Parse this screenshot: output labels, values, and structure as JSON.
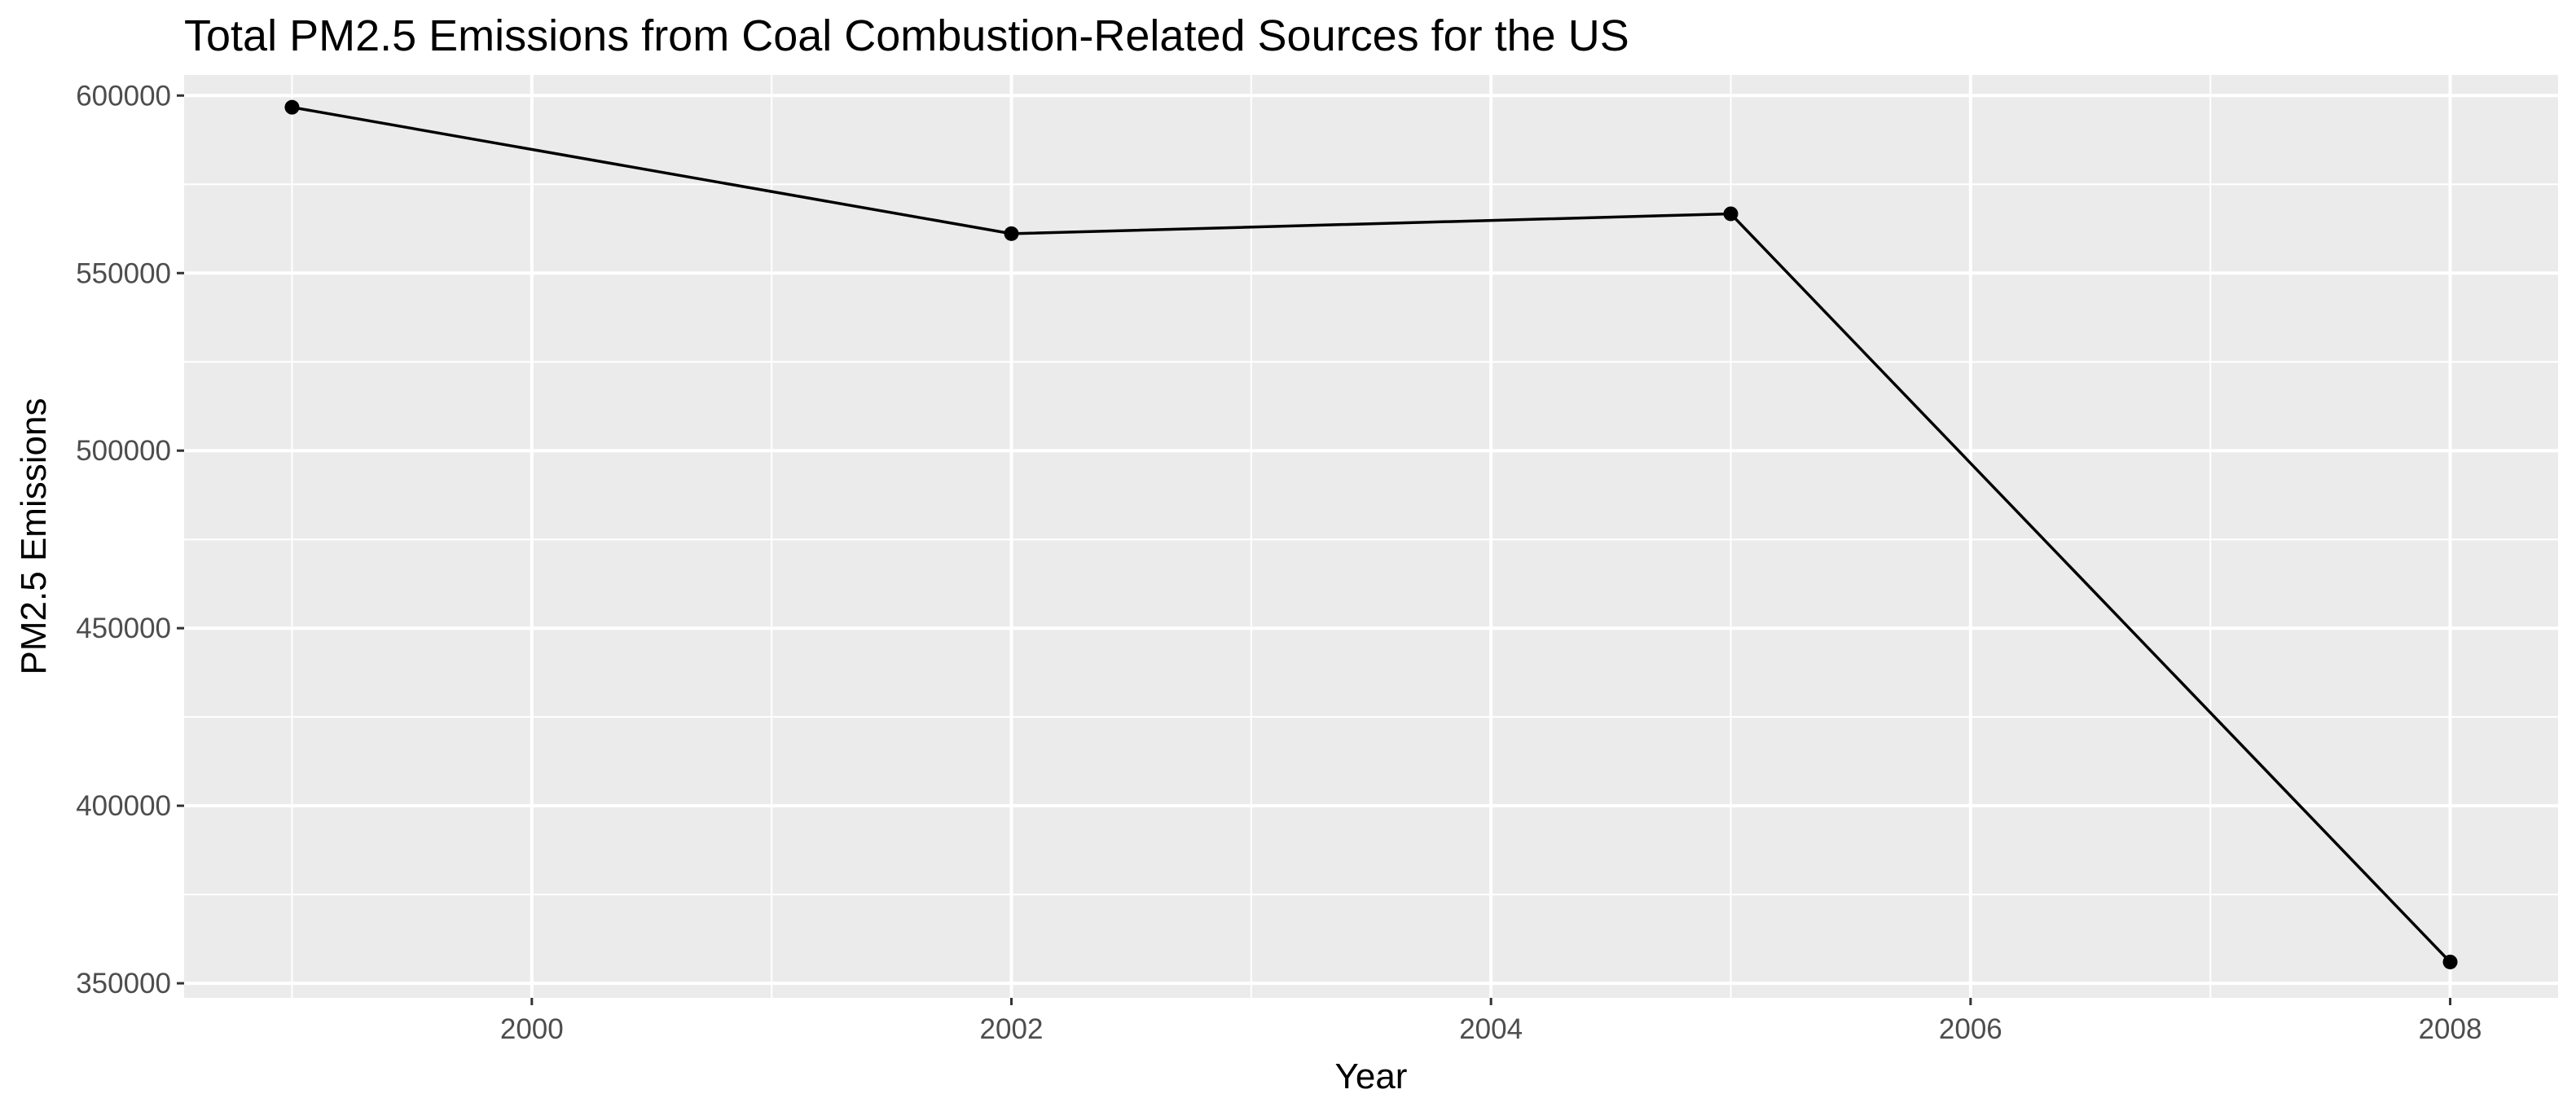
{
  "chart_data": {
    "type": "line",
    "title": "Total PM2.5 Emissions from Coal Combustion-Related Sources for the US",
    "xlabel": "Year",
    "ylabel": "PM2.5 Emissions",
    "x": [
      1999,
      2002,
      2005,
      2008
    ],
    "series": [
      {
        "values": [
          596700,
          561100,
          566700,
          356000
        ]
      }
    ],
    "xlim": [
      1998.55,
      2008.45
    ],
    "ylim": [
      345900,
      605800
    ],
    "x_ticks": [
      2000,
      2002,
      2004,
      2006,
      2008
    ],
    "x_tick_labels": [
      "2000",
      "2002",
      "2004",
      "2006",
      "2008"
    ],
    "y_ticks": [
      350000,
      400000,
      450000,
      500000,
      550000,
      600000
    ],
    "y_tick_labels": [
      "350000",
      "400000",
      "450000",
      "500000",
      "550000",
      "600000"
    ],
    "show_points": true,
    "grid": true,
    "legend": "none",
    "colors": {
      "panel_background": "#ebebeb",
      "grid": "#ffffff",
      "line": "#000000",
      "points": "#000000",
      "tick_text": "#4d4d4d",
      "text": "#000000"
    }
  }
}
